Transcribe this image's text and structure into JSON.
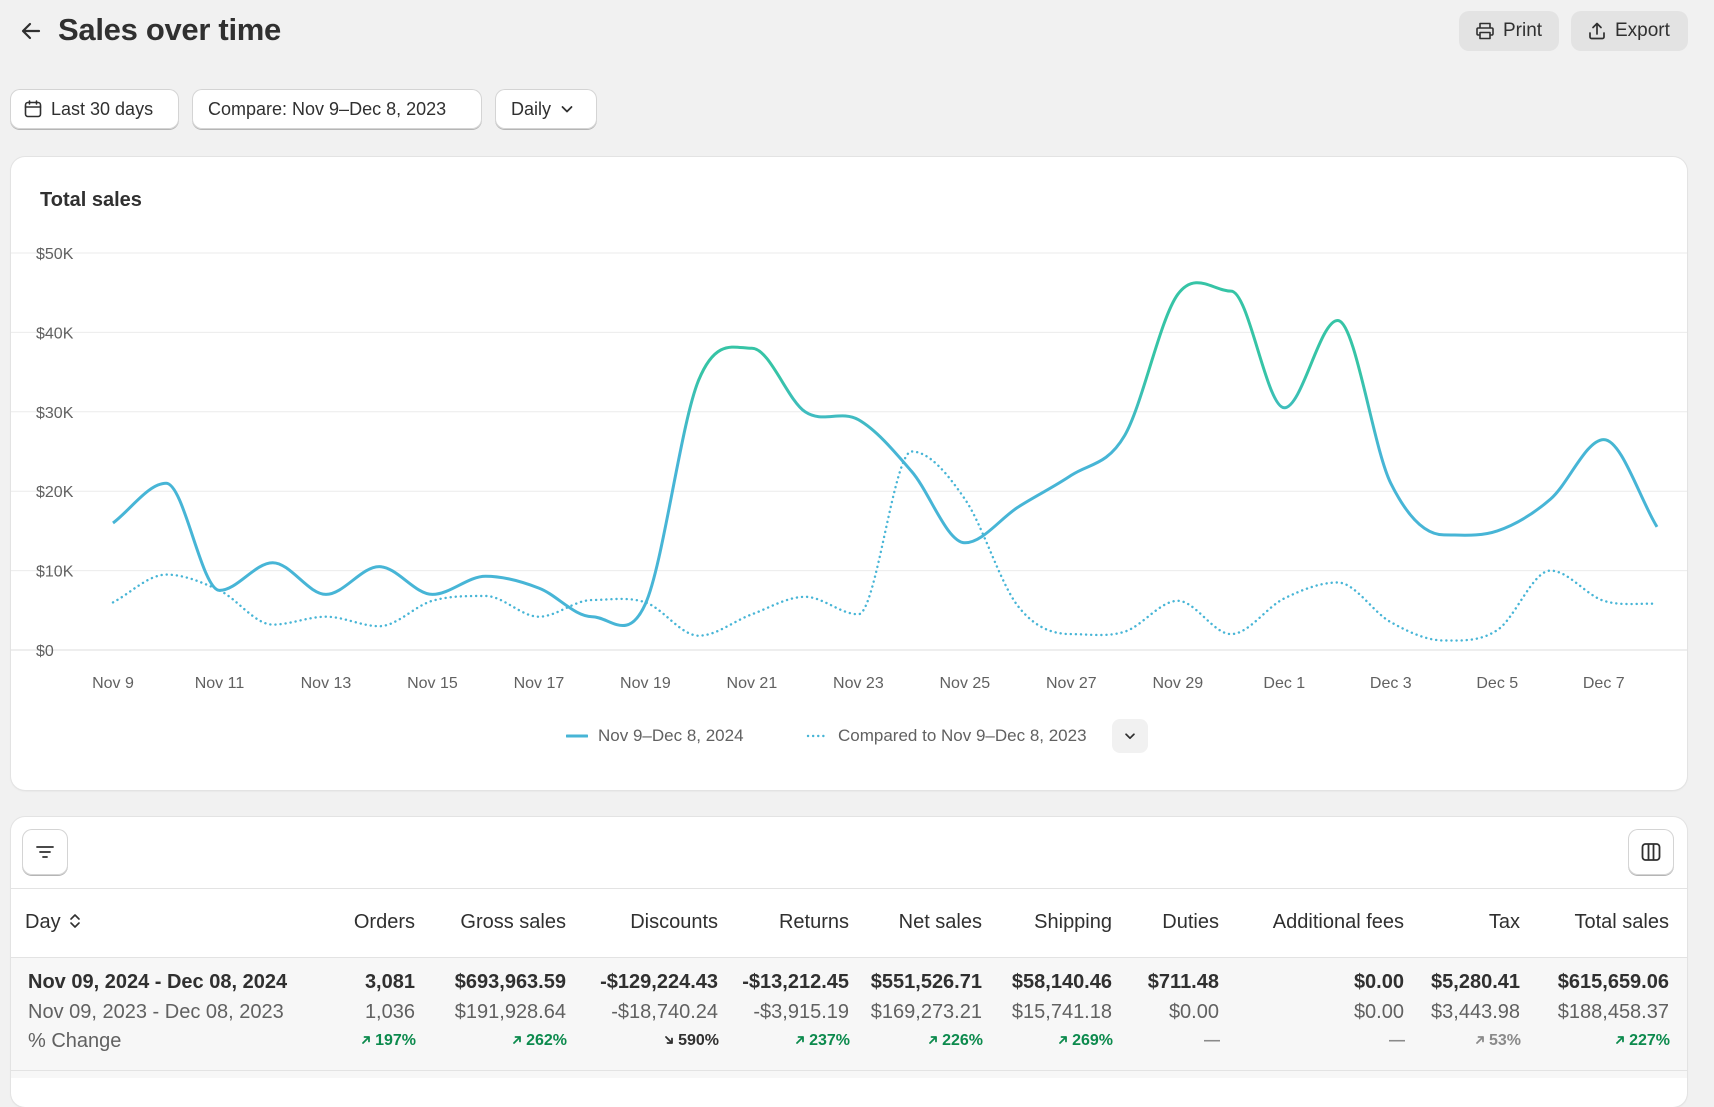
{
  "header": {
    "title": "Sales over time",
    "print_label": "Print",
    "export_label": "Export"
  },
  "filters": {
    "date_range": "Last 30 days",
    "compare": "Compare: Nov 9–Dec 8, 2023",
    "granularity": "Daily"
  },
  "chart": {
    "title": "Total sales",
    "legend_current": "Nov 9–Dec 8, 2024",
    "legend_compare": "Compared to Nov 9–Dec 8, 2023"
  },
  "chart_data": {
    "type": "line",
    "title": "Total sales",
    "ylim": [
      0,
      50000
    ],
    "y_ticks": [
      0,
      10000,
      20000,
      30000,
      40000,
      50000
    ],
    "y_tick_labels": [
      "$0",
      "$10K",
      "$20K",
      "$30K",
      "$40K",
      "$50K"
    ],
    "x": [
      "Nov 9",
      "Nov 10",
      "Nov 11",
      "Nov 12",
      "Nov 13",
      "Nov 14",
      "Nov 15",
      "Nov 16",
      "Nov 17",
      "Nov 18",
      "Nov 19",
      "Nov 20",
      "Nov 21",
      "Nov 22",
      "Nov 23",
      "Nov 24",
      "Nov 25",
      "Nov 26",
      "Nov 27",
      "Nov 28",
      "Nov 29",
      "Nov 30",
      "Dec 1",
      "Dec 2",
      "Dec 3",
      "Dec 4",
      "Dec 5",
      "Dec 6",
      "Dec 7",
      "Dec 8"
    ],
    "x_tick_labels": [
      "Nov 9",
      "Nov 11",
      "Nov 13",
      "Nov 15",
      "Nov 17",
      "Nov 19",
      "Nov 21",
      "Nov 23",
      "Nov 25",
      "Nov 27",
      "Nov 29",
      "Dec 1",
      "Dec 3",
      "Dec 5",
      "Dec 7"
    ],
    "grid": true,
    "legend_placement": "bottom-center",
    "series": [
      {
        "name": "Nov 9–Dec 8, 2024",
        "style": "solid",
        "color": "#47b5d6",
        "peak_color": "#36c4a6",
        "values": [
          16000,
          21000,
          7500,
          11000,
          7000,
          10500,
          7000,
          9300,
          7800,
          4200,
          5800,
          34000,
          38000,
          30000,
          29000,
          22500,
          13500,
          18000,
          22000,
          27000,
          44800,
          45200,
          30500,
          41500,
          21000,
          14500,
          15000,
          19000,
          26500,
          15500
        ]
      },
      {
        "name": "Compared to Nov 9–Dec 8, 2023",
        "style": "dotted",
        "color": "#47b5d6",
        "values": [
          6000,
          9500,
          7500,
          3200,
          4200,
          3000,
          6200,
          6800,
          4200,
          6300,
          6000,
          1800,
          4500,
          6700,
          4500,
          25000,
          19000,
          5500,
          2000,
          2300,
          6200,
          2000,
          6500,
          8500,
          3500,
          1200,
          2500,
          10000,
          6200,
          5800
        ]
      }
    ]
  },
  "table": {
    "columns": [
      "Day",
      "Orders",
      "Gross sales",
      "Discounts",
      "Returns",
      "Net sales",
      "Shipping",
      "Duties",
      "Additional fees",
      "Tax",
      "Total sales"
    ],
    "rows": {
      "current": {
        "label": "Nov 09, 2024 - Dec 08, 2024",
        "values": [
          "3,081",
          "$693,963.59",
          "-$129,224.43",
          "-$13,212.45",
          "$551,526.71",
          "$58,140.46",
          "$711.48",
          "$0.00",
          "$5,280.41",
          "$615,659.06"
        ]
      },
      "previous": {
        "label": "Nov 09, 2023 - Dec 08, 2023",
        "values": [
          "1,036",
          "$191,928.64",
          "-$18,740.24",
          "-$3,915.19",
          "$169,273.21",
          "$15,741.18",
          "$0.00",
          "$0.00",
          "$3,443.98",
          "$188,458.37"
        ]
      },
      "change": {
        "label": "% Change",
        "values": [
          "197%",
          "262%",
          "590%",
          "237%",
          "226%",
          "269%",
          "—",
          "—",
          "53%",
          "227%"
        ],
        "direction": [
          "up",
          "up",
          "down",
          "up",
          "up",
          "up",
          "none",
          "none",
          "up",
          "up"
        ]
      }
    }
  },
  "colors": {
    "positive": "#0c8a4d",
    "line": "#47b5d6",
    "line_peak": "#36c4a6"
  }
}
